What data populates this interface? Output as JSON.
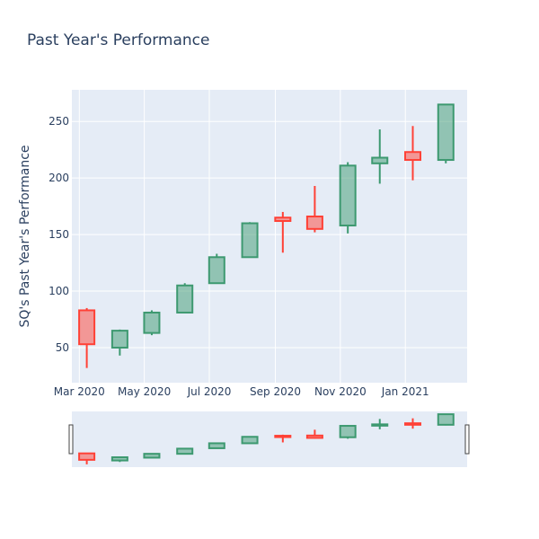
{
  "chart_data": {
    "type": "candlestick",
    "title": "Past Year's Performance",
    "ylabel": "SQ's Past Year's Performance",
    "xlabel": "",
    "x_tick_labels": [
      "Mar 2020",
      "May 2020",
      "Jul 2020",
      "Sep 2020",
      "Nov 2020",
      "Jan 2021"
    ],
    "x_tick_dates": [
      "2020-03-01",
      "2020-05-01",
      "2020-07-01",
      "2020-09-01",
      "2020-11-01",
      "2021-01-01"
    ],
    "y_ticks": [
      50,
      100,
      150,
      200,
      250
    ],
    "ylim": [
      19,
      278
    ],
    "xlim": [
      "2020-02-23",
      "2021-02-28"
    ],
    "grid": true,
    "range_slider": true,
    "increasing_color": "#3d9970",
    "decreasing_color": "#ff4136",
    "candles": [
      {
        "date": "2020-03-08",
        "open": 83,
        "high": 85,
        "low": 32,
        "close": 53
      },
      {
        "date": "2020-04-08",
        "open": 50,
        "high": 66,
        "low": 43,
        "close": 65
      },
      {
        "date": "2020-05-08",
        "open": 63,
        "high": 83,
        "low": 61,
        "close": 81
      },
      {
        "date": "2020-06-08",
        "open": 81,
        "high": 107,
        "low": 81,
        "close": 105
      },
      {
        "date": "2020-07-08",
        "open": 107,
        "high": 133,
        "low": 107,
        "close": 130
      },
      {
        "date": "2020-08-08",
        "open": 130,
        "high": 161,
        "low": 130,
        "close": 160
      },
      {
        "date": "2020-09-08",
        "open": 165,
        "high": 170,
        "low": 134,
        "close": 162
      },
      {
        "date": "2020-10-08",
        "open": 166,
        "high": 193,
        "low": 152,
        "close": 155
      },
      {
        "date": "2020-11-08",
        "open": 158,
        "high": 214,
        "low": 151,
        "close": 211
      },
      {
        "date": "2020-12-08",
        "open": 213,
        "high": 243,
        "low": 195,
        "close": 218
      },
      {
        "date": "2021-01-08",
        "open": 223,
        "high": 246,
        "low": 198,
        "close": 216
      },
      {
        "date": "2021-02-08",
        "open": 216,
        "high": 265,
        "low": 213,
        "close": 265
      }
    ]
  }
}
